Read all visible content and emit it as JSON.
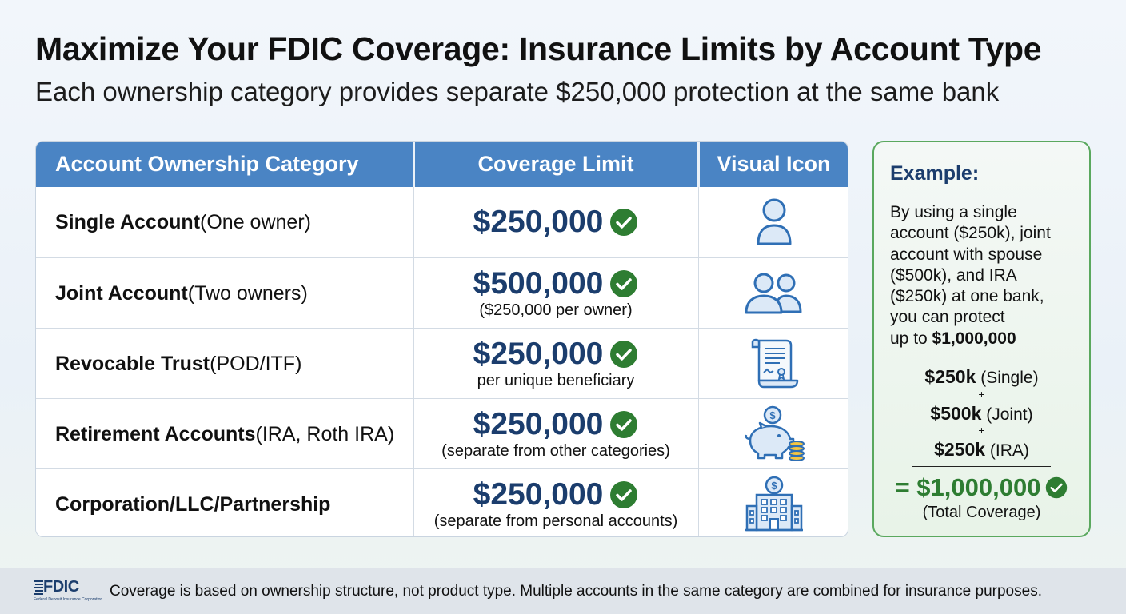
{
  "title": "Maximize Your FDIC Coverage: Insurance Limits by Account Type",
  "subtitle": "Each ownership category provides separate $250,000 protection at the same bank",
  "table": {
    "headers": [
      "Account Ownership Category",
      "Coverage Limit",
      "Visual Icon"
    ],
    "rows": [
      {
        "category": "Single Account",
        "detail": " (One owner)",
        "amount": "$250,000",
        "note": "",
        "icon": "person-icon"
      },
      {
        "category": "Joint Account",
        "detail": " (Two owners)",
        "amount": "$500,000",
        "note": "($250,000 per owner)",
        "icon": "two-people-icon"
      },
      {
        "category": "Revocable Trust",
        "detail": " (POD/ITF)",
        "amount": "$250,000",
        "note": "per unique beneficiary",
        "icon": "document-scroll-icon"
      },
      {
        "category": "Retirement Accounts",
        "detail": " (IRA, Roth IRA)",
        "amount": "$250,000",
        "note": "(separate from other categories)",
        "icon": "piggy-bank-icon"
      },
      {
        "category": "Corporation/LLC/Partnership",
        "detail": "",
        "amount": "$250,000",
        "note": "(separate from personal accounts)",
        "icon": "office-building-icon"
      }
    ]
  },
  "example": {
    "title": "Example:",
    "lines": [
      "By using a single",
      "account ($250k), joint",
      "account with spouse",
      "($500k), and IRA",
      "($250k) at one bank,",
      "you can protect"
    ],
    "last_line_prefix": "up to ",
    "last_line_amount": "$1,000,000",
    "calc": [
      {
        "amount": "$250k",
        "label": " (Single)"
      },
      {
        "amount": "$500k",
        "label": " (Joint)"
      },
      {
        "amount": "$250k",
        "label": " (IRA)"
      }
    ],
    "plus": "+",
    "total": "= $1,000,000",
    "total_label": "(Total Coverage)"
  },
  "footer": {
    "logo": "FDIC",
    "logo_sub": "Federal Deposit Insurance Corporation",
    "text": "Coverage is based on ownership structure, not product type. Multiple accounts in the same category are combined for insurance purposes."
  },
  "colors": {
    "header_blue": "#4a84c4",
    "amount_navy": "#1b3d6d",
    "check_green": "#2e7d32",
    "icon_blue": "#2f6fb5"
  }
}
